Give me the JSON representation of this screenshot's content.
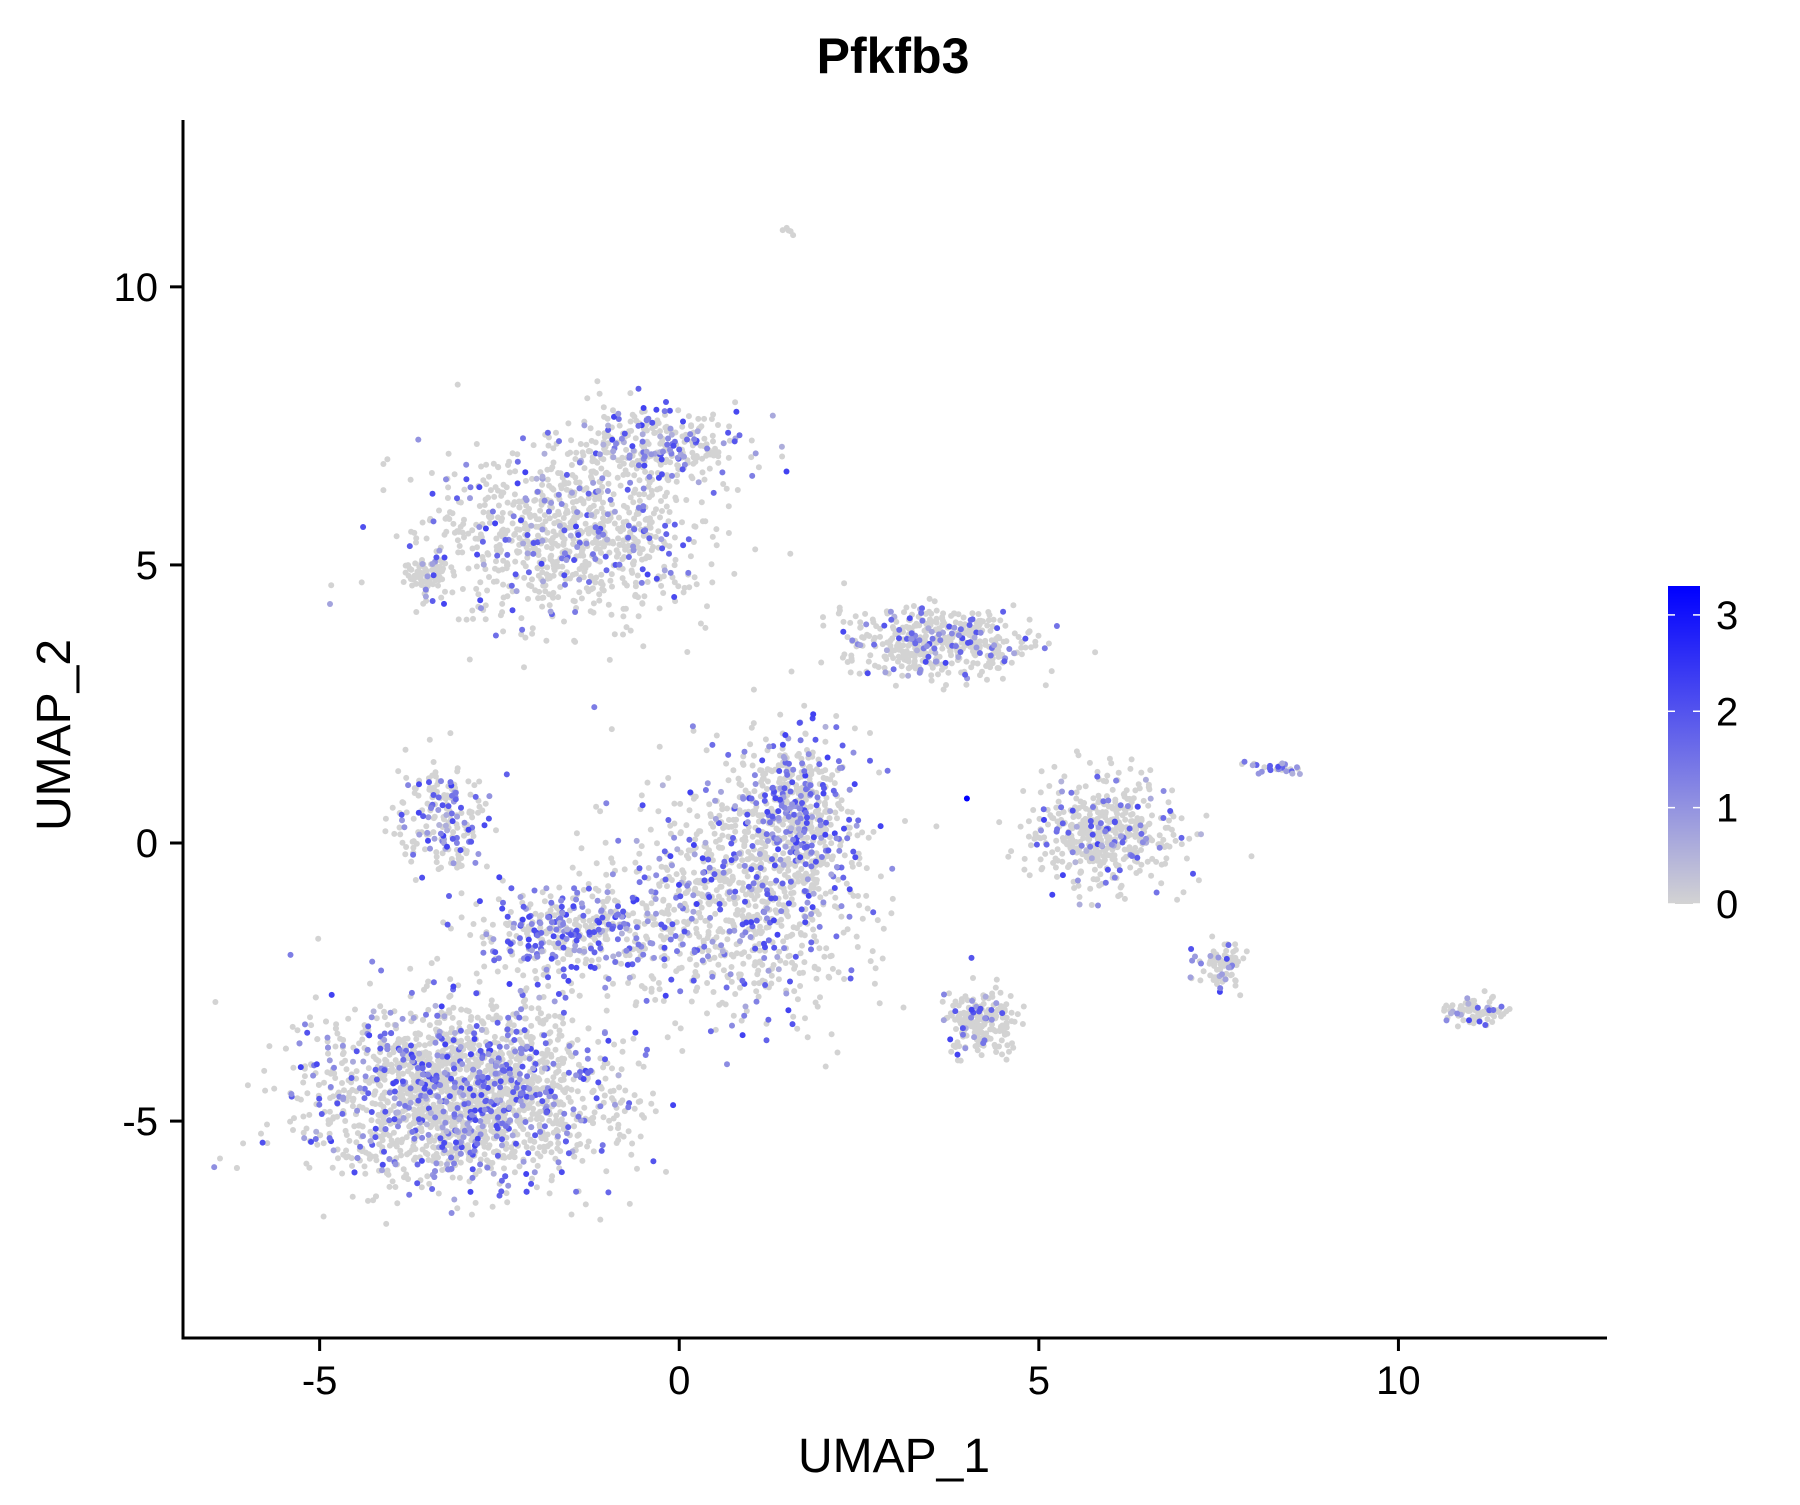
{
  "chart_data": {
    "type": "scatter",
    "title": "Pfkfb3",
    "xlabel": "UMAP_1",
    "ylabel": "UMAP_2",
    "xlim": [
      -6.9,
      12.9
    ],
    "ylim": [
      -8.9,
      13.0
    ],
    "x_ticks": [
      {
        "value": -5,
        "label": "-5"
      },
      {
        "value": 0,
        "label": "0"
      },
      {
        "value": 5,
        "label": "5"
      },
      {
        "value": 10,
        "label": "10"
      }
    ],
    "y_ticks": [
      {
        "value": -5,
        "label": "-5"
      },
      {
        "value": 0,
        "label": "0"
      },
      {
        "value": 5,
        "label": "5"
      },
      {
        "value": 10,
        "label": "10"
      }
    ],
    "grid": false,
    "legend_placement": "right",
    "colorbar": {
      "min": 0,
      "max": 3.3,
      "low_color": "#d3d3d3",
      "high_color": "#0000ff",
      "ticks": [
        {
          "value": 0,
          "label": "0"
        },
        {
          "value": 1,
          "label": "1"
        },
        {
          "value": 2,
          "label": "2"
        },
        {
          "value": 3,
          "label": "3"
        }
      ]
    },
    "clusters": [
      {
        "region": "upper-left lobe",
        "center": [
          -1.6,
          5.5
        ],
        "spread": [
          1.6,
          1.3
        ],
        "points": 900,
        "expressing_fraction": 0.15
      },
      {
        "region": "top cap",
        "center": [
          -0.3,
          7.1
        ],
        "spread": [
          1.1,
          0.6
        ],
        "points": 300,
        "expressing_fraction": 0.28
      },
      {
        "region": "left rim",
        "center": [
          -3.5,
          4.8
        ],
        "spread": [
          0.3,
          0.25
        ],
        "points": 70,
        "expressing_fraction": 0.05
      },
      {
        "region": "left middle",
        "center": [
          -3.3,
          0.5
        ],
        "spread": [
          0.6,
          0.9
        ],
        "points": 200,
        "expressing_fraction": 0.3
      },
      {
        "region": "middle band",
        "center": [
          -1.6,
          -1.6
        ],
        "spread": [
          1.1,
          0.7
        ],
        "points": 400,
        "expressing_fraction": 0.45
      },
      {
        "region": "main body lower-left",
        "center": [
          -3.0,
          -4.5
        ],
        "spread": [
          1.7,
          1.3
        ],
        "points": 2200,
        "expressing_fraction": 0.22
      },
      {
        "region": "central diagonal",
        "center": [
          0.8,
          -1.0
        ],
        "spread": [
          1.4,
          1.8
        ],
        "points": 900,
        "expressing_fraction": 0.25
      },
      {
        "region": "center right",
        "center": [
          1.6,
          0.5
        ],
        "spread": [
          0.7,
          1.2
        ],
        "points": 500,
        "expressing_fraction": 0.3
      },
      {
        "region": "right arm",
        "center": [
          3.6,
          3.6
        ],
        "spread": [
          1.1,
          0.5
        ],
        "points": 450,
        "expressing_fraction": 0.18
      },
      {
        "region": "small arm cluster",
        "center": [
          4.2,
          -3.2
        ],
        "spread": [
          0.4,
          0.5
        ],
        "points": 200,
        "expressing_fraction": 0.1
      },
      {
        "region": "right cluster",
        "center": [
          5.9,
          0.2
        ],
        "spread": [
          0.8,
          0.8
        ],
        "points": 500,
        "expressing_fraction": 0.15
      },
      {
        "region": "right tail",
        "center": [
          8.3,
          1.35
        ],
        "spread": [
          0.35,
          0.08
        ],
        "points": 30,
        "expressing_fraction": 0.6
      },
      {
        "region": "small right cluster",
        "center": [
          7.5,
          -2.2
        ],
        "spread": [
          0.3,
          0.35
        ],
        "points": 80,
        "expressing_fraction": 0.2
      },
      {
        "region": "far right cluster",
        "center": [
          11.1,
          -3.0
        ],
        "spread": [
          0.35,
          0.2
        ],
        "points": 90,
        "expressing_fraction": 0.2
      },
      {
        "region": "top outliers",
        "center": [
          1.5,
          11.0
        ],
        "spread": [
          0.1,
          0.15
        ],
        "points": 5,
        "expressing_fraction": 0.0
      }
    ],
    "highlighted_points": [
      {
        "x": 4.0,
        "y": 0.8,
        "value": 3.3
      }
    ]
  }
}
